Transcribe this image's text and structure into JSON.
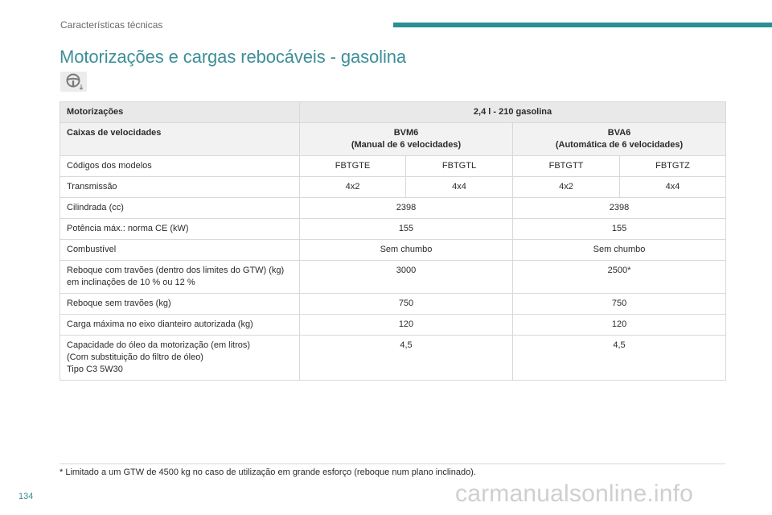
{
  "header": {
    "section": "Características técnicas",
    "accent_color": "#2b8f96"
  },
  "title": "Motorizações e cargas rebocáveis - gasolina",
  "icon": {
    "name": "steering-wheel-icon"
  },
  "table": {
    "engines_label": "Motorizações",
    "engine_name": "2,4 l - 210 gasolina",
    "gearbox_label": "Caixas de velocidades",
    "gearboxes": [
      {
        "code": "BVM6",
        "desc": "(Manual de 6 velocidades)"
      },
      {
        "code": "BVA6",
        "desc": "(Automática de 6 velocidades)"
      }
    ],
    "rows": {
      "model_codes": {
        "label": "Códigos dos modelos",
        "values": [
          "FBTGTE",
          "FBTGTL",
          "FBTGTT",
          "FBTGTZ"
        ]
      },
      "transmission": {
        "label": "Transmissão",
        "values": [
          "4x2",
          "4x4",
          "4x2",
          "4x4"
        ]
      },
      "displacement": {
        "label": "Cilindrada (cc)",
        "values": [
          "2398",
          "2398"
        ]
      },
      "power": {
        "label": "Potência máx.: norma CE (kW)",
        "values": [
          "155",
          "155"
        ]
      },
      "fuel": {
        "label": "Combustível",
        "values": [
          "Sem chumbo",
          "Sem chumbo"
        ]
      },
      "braked_trailer": {
        "label_1": "Reboque com travões (dentro dos limites do GTW) (kg)",
        "label_2": "em inclinações de 10 % ou 12 %",
        "values": [
          "3000",
          "2500*"
        ]
      },
      "unbraked_trailer": {
        "label": "Reboque sem travões (kg)",
        "values": [
          "750",
          "750"
        ]
      },
      "nose_weight": {
        "label": "Carga máxima no eixo dianteiro autorizada (kg)",
        "values": [
          "120",
          "120"
        ]
      },
      "oil_capacity": {
        "label_1": "Capacidade do óleo da motorização (em litros)",
        "label_2": "(Com substituição do filtro de óleo)",
        "label_3": "Tipo C3 5W30",
        "values": [
          "4,5",
          "4,5"
        ]
      }
    }
  },
  "footnote": "* Limitado a um GTW de 4500 kg no caso de utilização em grande esforço (reboque num plano inclinado).",
  "page_number": "134",
  "watermark": "carmanualsonline.info"
}
